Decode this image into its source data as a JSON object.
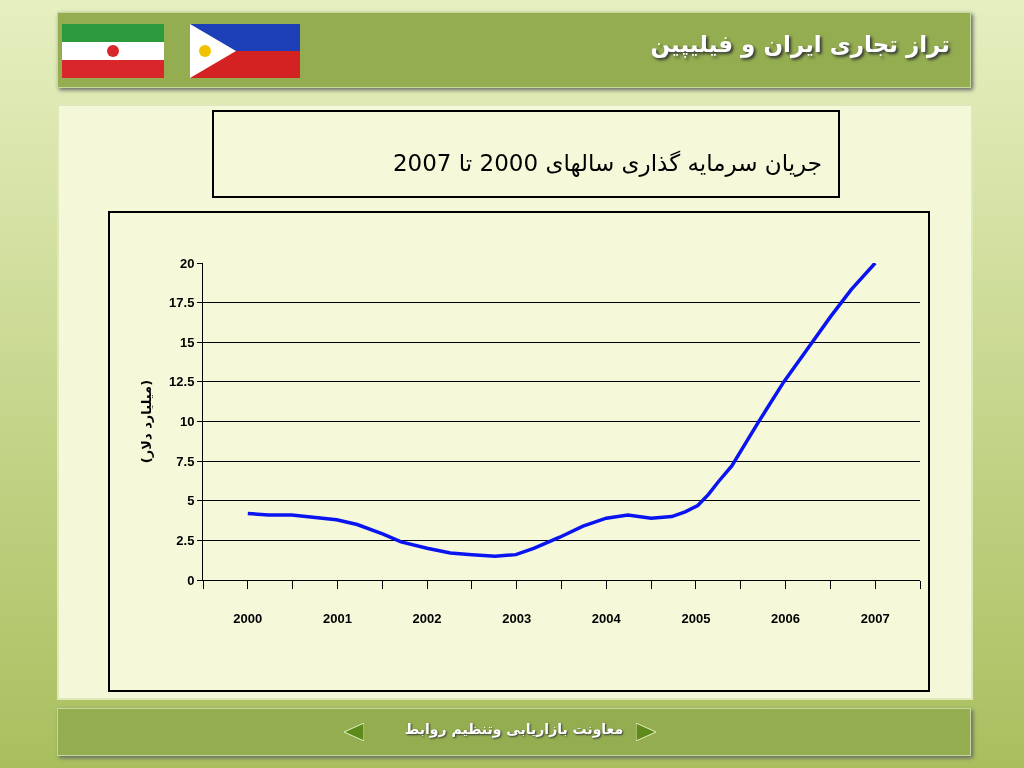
{
  "chart_data": {
    "type": "line",
    "title": "جریان سرمایه گذاری سالهای 2000 تا 2007",
    "ylabel": "(میلیارد دلار)",
    "annotations": [
      "تراز تجاری ایران و فیلیپین",
      "معاونت بازاریابی وتنظیم روابط"
    ],
    "x": [
      2000.0,
      2000.23,
      2000.49,
      2000.99,
      2001.22,
      2001.51,
      2001.71,
      2002.0,
      2002.26,
      2002.5,
      2002.76,
      2002.99,
      2003.19,
      2003.48,
      2003.74,
      2004.0,
      2004.24,
      2004.5,
      2004.73,
      2004.88,
      2005.02,
      2005.14,
      2005.25,
      2005.4,
      2005.69,
      2005.98,
      2006.21,
      2006.5,
      2006.73,
      2007.0
    ],
    "series": [
      {
        "color": "#0a14f0",
        "values": [
          4.2,
          4.1,
          4.1,
          3.8,
          3.5,
          2.9,
          2.4,
          2.0,
          1.7,
          1.6,
          1.5,
          1.6,
          2.0,
          2.7,
          3.4,
          3.9,
          4.1,
          3.9,
          4.0,
          4.3,
          4.7,
          5.4,
          6.2,
          7.2,
          9.9,
          12.5,
          14.3,
          16.6,
          18.3,
          20
        ]
      }
    ],
    "xlim": [
      1999.5,
      2007.5
    ],
    "xticks": [
      {
        "value": 1999.5,
        "label": null
      },
      2000,
      {
        "value": 2000.5,
        "label": null
      },
      2001,
      {
        "value": 2001.5,
        "label": null
      },
      2002,
      {
        "value": 2002.5,
        "label": null
      },
      2003,
      {
        "value": 2003.5,
        "label": null
      },
      2004,
      {
        "value": 2004.5,
        "label": null
      },
      2005,
      {
        "value": 2005.5,
        "label": null
      },
      2006,
      {
        "value": 2006.5,
        "label": null
      },
      2007,
      {
        "value": 2007.5,
        "label": null
      }
    ],
    "ylim": [
      0,
      20
    ],
    "yticks": [
      0,
      2.5,
      5,
      7.5,
      10,
      12.5,
      15,
      17.5,
      20
    ],
    "grid": "y",
    "marker": "none",
    "line_style": "solid"
  }
}
